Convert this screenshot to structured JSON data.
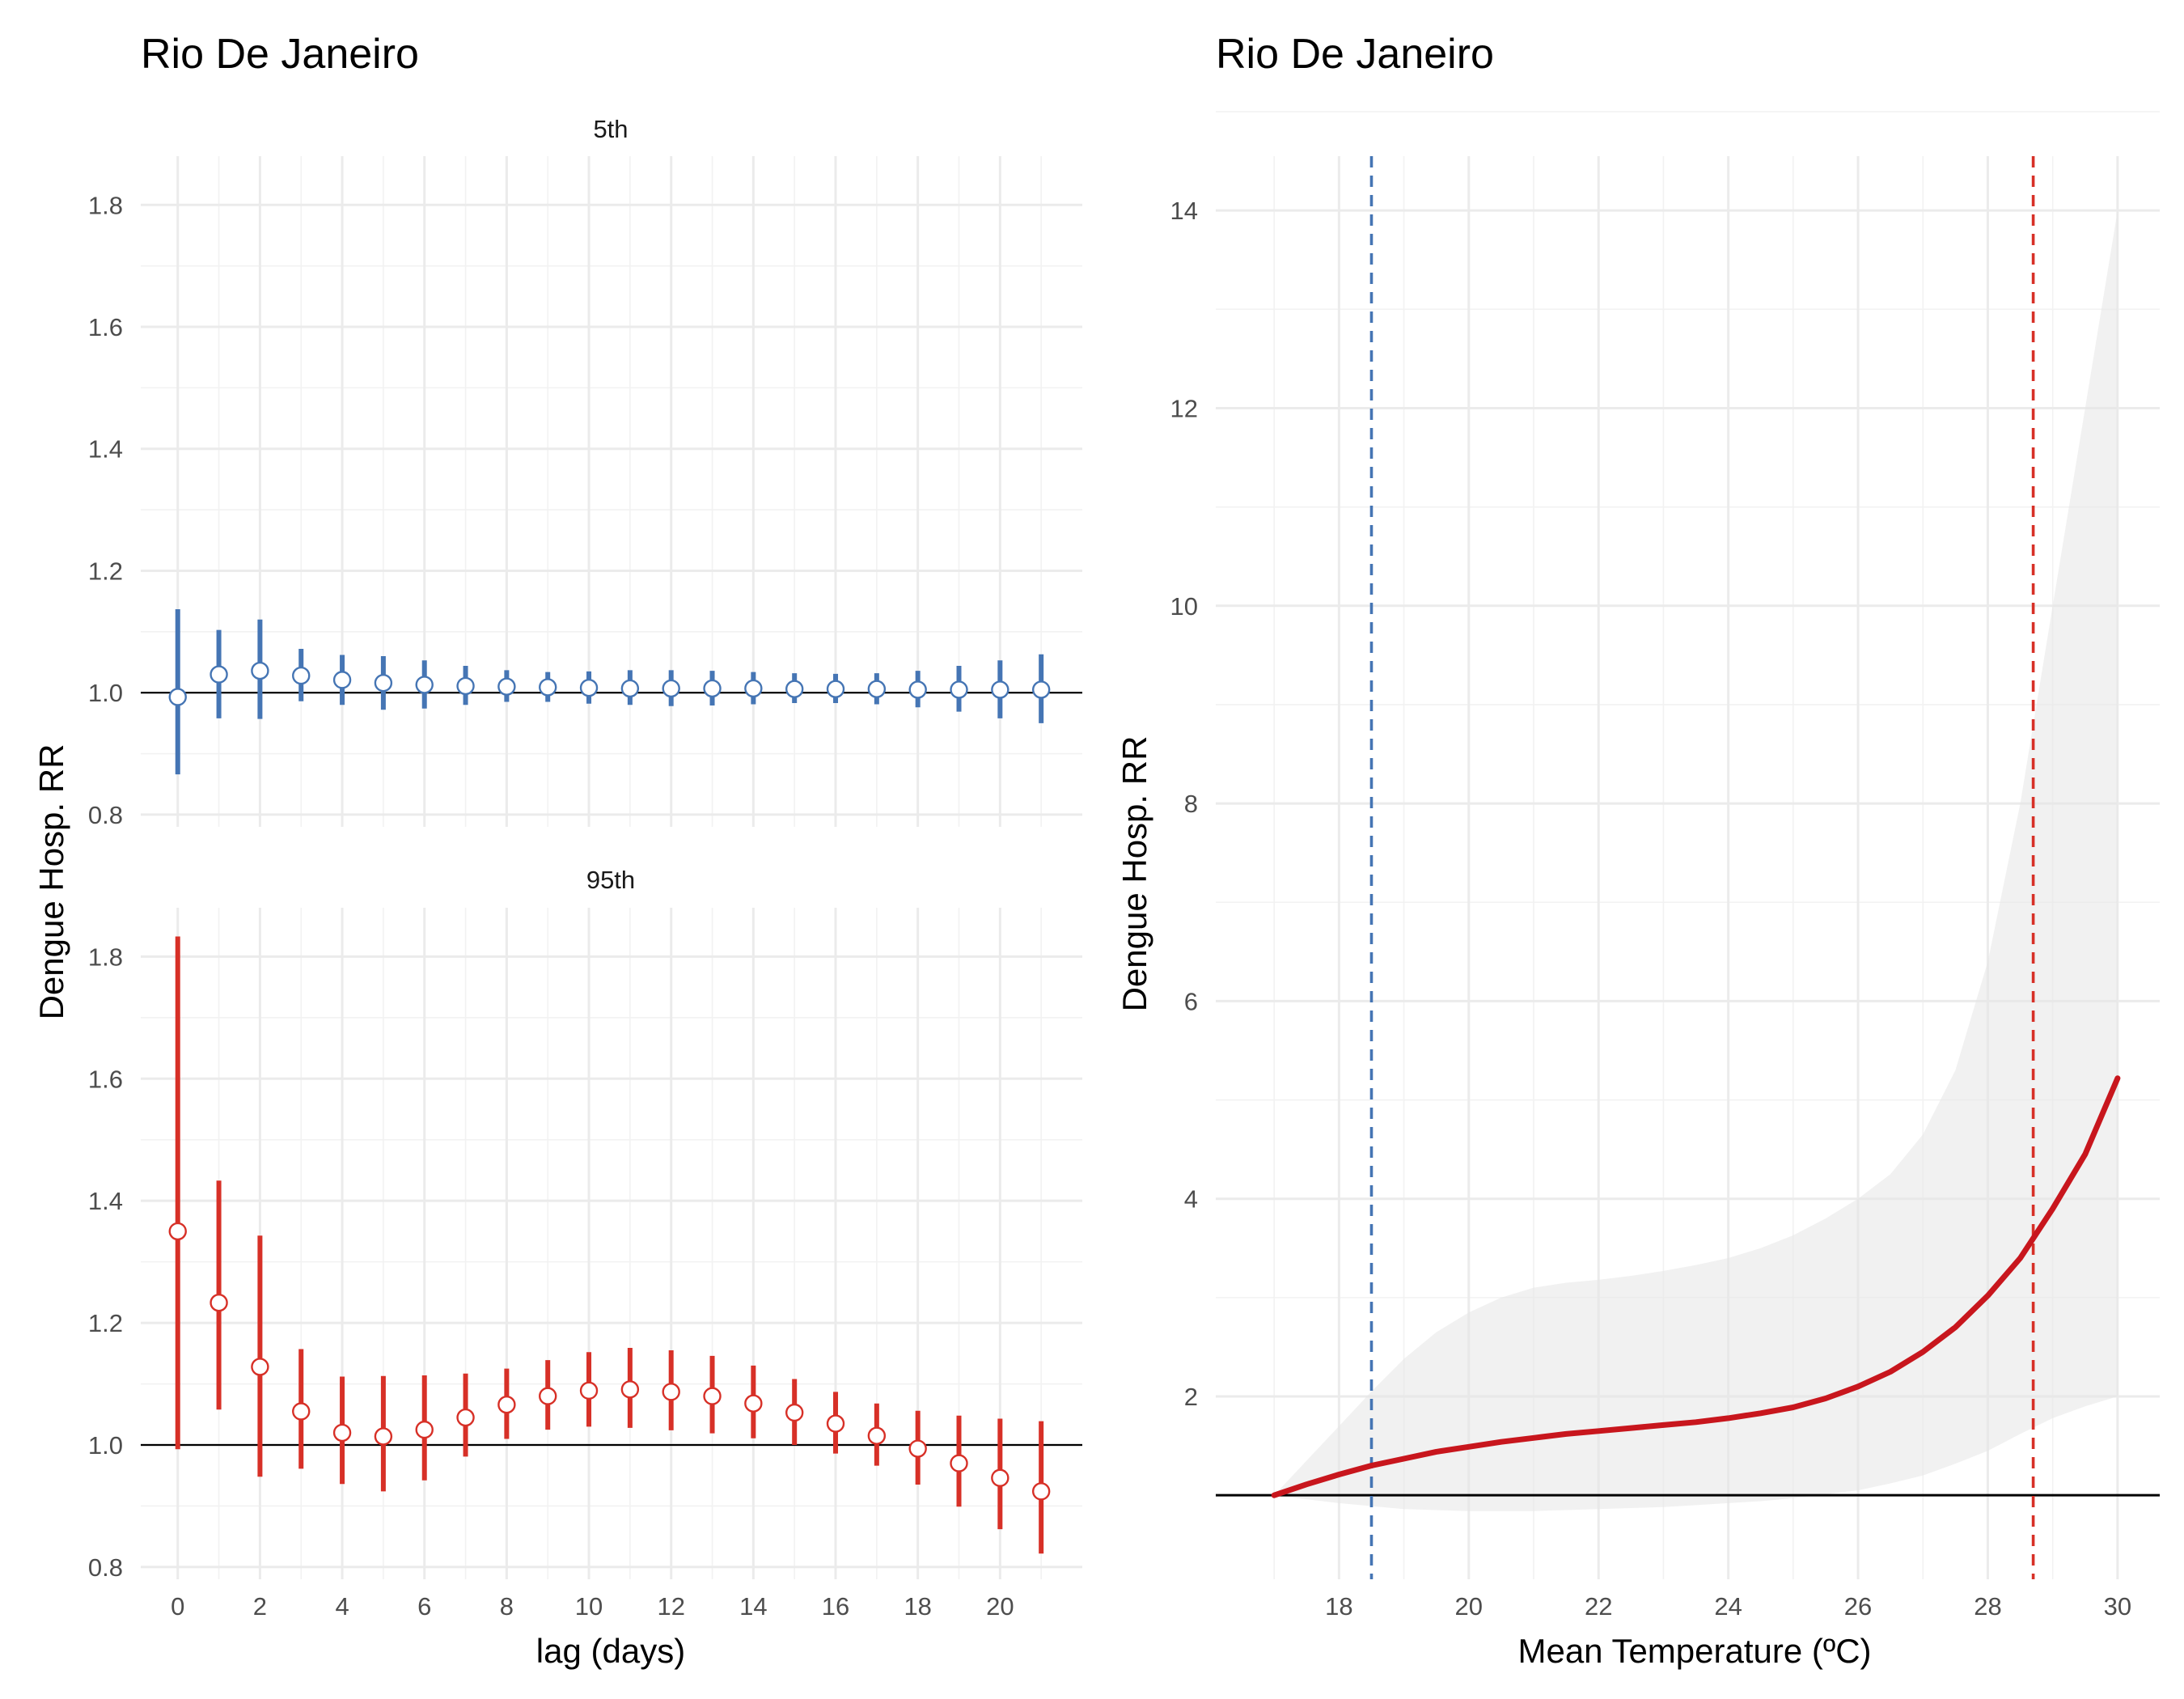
{
  "chart_data": [
    {
      "type": "errorbar",
      "title": "Rio De Janeiro",
      "xlabel": "lag (days)",
      "ylabel": "Dengue Hosp. RR",
      "xlim": [
        -0.9,
        22
      ],
      "x_ticks": [
        "0",
        "2",
        "4",
        "6",
        "8",
        "10",
        "12",
        "14",
        "16",
        "18",
        "20"
      ],
      "y_ticks": [
        "0.8",
        "1.0",
        "1.2",
        "1.4",
        "1.6",
        "1.8"
      ],
      "ylim": [
        0.78,
        1.88
      ],
      "reference_line": 1.0,
      "grid": true,
      "facets": [
        {
          "label": "5th",
          "color": "#4575b4",
          "x": [
            0,
            1,
            2,
            3,
            4,
            5,
            6,
            7,
            8,
            9,
            10,
            11,
            12,
            13,
            14,
            15,
            16,
            17,
            18,
            19,
            20,
            21
          ],
          "estimate": [
            0.993,
            1.03,
            1.036,
            1.028,
            1.021,
            1.016,
            1.013,
            1.011,
            1.01,
            1.009,
            1.008,
            1.007,
            1.007,
            1.007,
            1.007,
            1.006,
            1.006,
            1.006,
            1.005,
            1.005,
            1.005,
            1.005
          ],
          "lower": [
            0.866,
            0.958,
            0.957,
            0.986,
            0.98,
            0.972,
            0.974,
            0.98,
            0.985,
            0.985,
            0.982,
            0.98,
            0.978,
            0.979,
            0.981,
            0.983,
            0.983,
            0.981,
            0.976,
            0.969,
            0.958,
            0.95
          ],
          "upper": [
            1.137,
            1.103,
            1.12,
            1.072,
            1.062,
            1.06,
            1.053,
            1.044,
            1.037,
            1.034,
            1.035,
            1.037,
            1.037,
            1.036,
            1.034,
            1.032,
            1.031,
            1.032,
            1.036,
            1.044,
            1.053,
            1.063
          ]
        },
        {
          "label": "95th",
          "color": "#d73027",
          "x": [
            0,
            1,
            2,
            3,
            4,
            5,
            6,
            7,
            8,
            9,
            10,
            11,
            12,
            13,
            14,
            15,
            16,
            17,
            18,
            19,
            20,
            21
          ],
          "estimate": [
            1.35,
            1.233,
            1.128,
            1.055,
            1.02,
            1.014,
            1.025,
            1.045,
            1.066,
            1.08,
            1.089,
            1.091,
            1.087,
            1.08,
            1.068,
            1.053,
            1.035,
            1.015,
            0.994,
            0.97,
            0.946,
            0.924
          ],
          "lower": [
            0.993,
            1.058,
            0.948,
            0.961,
            0.936,
            0.924,
            0.942,
            0.981,
            1.01,
            1.025,
            1.03,
            1.028,
            1.024,
            1.019,
            1.011,
            1.0,
            0.986,
            0.966,
            0.935,
            0.899,
            0.862,
            0.822
          ],
          "upper": [
            1.833,
            1.433,
            1.343,
            1.157,
            1.112,
            1.113,
            1.114,
            1.117,
            1.125,
            1.139,
            1.152,
            1.159,
            1.155,
            1.146,
            1.13,
            1.108,
            1.087,
            1.068,
            1.056,
            1.048,
            1.043,
            1.039
          ]
        }
      ]
    },
    {
      "type": "line",
      "title": "Rio De Janeiro",
      "xlabel": "Mean Temperature (ºC)",
      "ylabel": "Dengue Hosp. RR",
      "xlim": [
        16.1,
        30.65
      ],
      "ylim": [
        0.15,
        14.55
      ],
      "x_ticks": [
        "18",
        "20",
        "22",
        "24",
        "26",
        "28",
        "30"
      ],
      "y_ticks": [
        "2",
        "4",
        "6",
        "8",
        "10",
        "12",
        "14"
      ],
      "reference_line": 1.0,
      "vlines": [
        {
          "x": 18.5,
          "color": "#4575b4",
          "style": "dashed"
        },
        {
          "x": 28.7,
          "color": "#d73027",
          "style": "dashed"
        }
      ],
      "grid": true,
      "series": [
        {
          "color": "#c8161d",
          "x": [
            17,
            17.5,
            18,
            18.5,
            19,
            19.5,
            20,
            20.5,
            21,
            21.5,
            22,
            22.5,
            23,
            23.5,
            24,
            24.5,
            25,
            25.5,
            26,
            26.5,
            27,
            27.5,
            28,
            28.5,
            29,
            29.5,
            30
          ],
          "y": [
            1.0,
            1.11,
            1.21,
            1.3,
            1.37,
            1.44,
            1.49,
            1.54,
            1.58,
            1.62,
            1.65,
            1.68,
            1.71,
            1.74,
            1.78,
            1.83,
            1.89,
            1.98,
            2.1,
            2.25,
            2.45,
            2.7,
            3.02,
            3.4,
            3.9,
            4.45,
            5.22
          ],
          "lower": [
            1.0,
            0.96,
            0.92,
            0.89,
            0.86,
            0.85,
            0.84,
            0.84,
            0.84,
            0.85,
            0.86,
            0.87,
            0.88,
            0.9,
            0.92,
            0.94,
            0.97,
            1.01,
            1.05,
            1.12,
            1.2,
            1.32,
            1.45,
            1.62,
            1.78,
            1.9,
            2.0
          ],
          "upper": [
            1.0,
            1.35,
            1.7,
            2.05,
            2.38,
            2.65,
            2.85,
            3.0,
            3.1,
            3.15,
            3.18,
            3.22,
            3.27,
            3.33,
            3.4,
            3.5,
            3.63,
            3.8,
            4.0,
            4.25,
            4.65,
            5.3,
            6.4,
            8.0,
            10.0,
            12.0,
            14.0
          ]
        }
      ]
    }
  ]
}
